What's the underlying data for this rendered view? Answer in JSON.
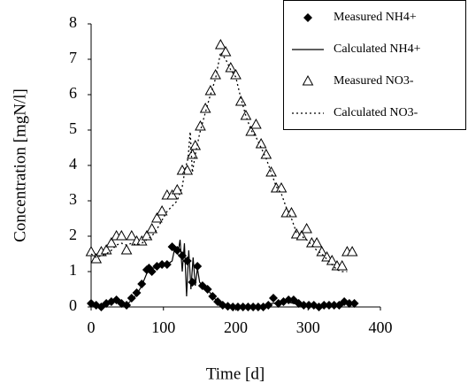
{
  "chart_data": {
    "type": "line",
    "x_label": "Time [d]",
    "y_label": "Concentration [mgN/l]",
    "xlim": [
      0,
      400
    ],
    "xticks": [
      0,
      100,
      200,
      300,
      400
    ],
    "ylim": [
      0,
      8
    ],
    "yticks": [
      0,
      1,
      2,
      3,
      4,
      5,
      6,
      7,
      8
    ],
    "legend": "upper right",
    "series": [
      {
        "name": "Measured NH4+",
        "color": "#000000",
        "marker": "diamond",
        "x": [
          0,
          7,
          14,
          21,
          28,
          35,
          42,
          49,
          56,
          63,
          70,
          77,
          80,
          84,
          91,
          98,
          105,
          112,
          119,
          126,
          133,
          140,
          147,
          154,
          161,
          168,
          175,
          182,
          189,
          196,
          203,
          210,
          217,
          224,
          231,
          238,
          245,
          252,
          259,
          266,
          273,
          280,
          287,
          294,
          301,
          308,
          315,
          322,
          329,
          336,
          343,
          350,
          357,
          364
        ],
        "values": [
          0.1,
          0.05,
          0.0,
          0.1,
          0.15,
          0.2,
          0.1,
          0.05,
          0.25,
          0.4,
          0.65,
          1.05,
          1.1,
          1.0,
          1.15,
          1.2,
          1.2,
          1.7,
          1.6,
          1.45,
          1.3,
          0.7,
          1.15,
          0.6,
          0.5,
          0.3,
          0.15,
          0.05,
          0.02,
          0,
          0,
          0,
          0,
          0,
          0,
          0,
          0.05,
          0.25,
          0.1,
          0.15,
          0.2,
          0.2,
          0.1,
          0.05,
          0.05,
          0.05,
          0.0,
          0.05,
          0.05,
          0.05,
          0.05,
          0.15,
          0.1,
          0.1
        ]
      },
      {
        "name": "Calculated NH4+",
        "color": "#000000",
        "dash": "solid",
        "x": [
          0,
          7,
          14,
          21,
          28,
          35,
          42,
          49,
          56,
          63,
          70,
          77,
          84,
          91,
          98,
          105,
          112,
          116,
          120,
          123,
          126,
          129,
          132,
          135,
          138,
          141,
          144,
          147,
          150,
          154,
          161,
          168,
          175,
          182,
          189,
          196,
          210,
          230,
          250,
          270,
          290,
          310,
          330,
          350,
          364
        ],
        "values": [
          0.1,
          0.05,
          0.05,
          0.1,
          0.15,
          0.15,
          0.1,
          0.05,
          0.2,
          0.35,
          0.6,
          0.95,
          1.1,
          1.1,
          1.2,
          1.2,
          1.3,
          1.7,
          1.5,
          1.9,
          1.0,
          1.8,
          0.3,
          1.6,
          0.5,
          1.4,
          0.6,
          1.1,
          0.7,
          0.6,
          0.5,
          0.3,
          0.15,
          0.05,
          0.02,
          0,
          0,
          0,
          0.1,
          0.15,
          0.05,
          0.05,
          0.05,
          0.1,
          0.1
        ]
      },
      {
        "name": "Measured NO3-",
        "color": "#000000",
        "marker": "triangle",
        "x": [
          0,
          7,
          14,
          21,
          28,
          35,
          42,
          49,
          56,
          63,
          70,
          77,
          84,
          91,
          98,
          105,
          112,
          119,
          126,
          133,
          140,
          144,
          151,
          158,
          165,
          172,
          179,
          186,
          193,
          200,
          207,
          214,
          221,
          228,
          235,
          242,
          249,
          256,
          263,
          270,
          277,
          284,
          291,
          298,
          305,
          312,
          319,
          326,
          333,
          340,
          347,
          354,
          361
        ],
        "values": [
          1.55,
          1.35,
          1.55,
          1.6,
          1.8,
          2.0,
          2.0,
          1.6,
          2.0,
          1.85,
          1.85,
          2.0,
          2.2,
          2.5,
          2.7,
          3.15,
          3.15,
          3.3,
          3.85,
          3.85,
          4.3,
          4.55,
          5.1,
          5.6,
          6.1,
          6.55,
          7.4,
          7.2,
          6.75,
          6.55,
          5.8,
          5.4,
          4.95,
          5.15,
          4.6,
          4.3,
          3.8,
          3.35,
          3.35,
          2.65,
          2.65,
          2.05,
          2.0,
          2.2,
          1.8,
          1.8,
          1.55,
          1.4,
          1.3,
          1.15,
          1.15,
          1.55,
          1.55
        ]
      },
      {
        "name": "Calculated NO3-",
        "color": "#000000",
        "dash": "dotted",
        "x": [
          0,
          7,
          14,
          21,
          28,
          35,
          42,
          49,
          56,
          63,
          70,
          77,
          84,
          91,
          98,
          105,
          112,
          119,
          126,
          130,
          134,
          137,
          140,
          144,
          150,
          158,
          165,
          172,
          179,
          186,
          193,
          200,
          207,
          214,
          221,
          228,
          235,
          242,
          249,
          256,
          263,
          270,
          277,
          284,
          291,
          298,
          305,
          312,
          319,
          326,
          333,
          340,
          347,
          354
        ],
        "values": [
          1.5,
          1.4,
          1.45,
          1.5,
          1.6,
          1.75,
          1.8,
          1.75,
          1.8,
          1.75,
          1.8,
          1.9,
          2.0,
          2.2,
          2.45,
          2.7,
          2.85,
          3.0,
          3.4,
          3.9,
          4.2,
          4.95,
          3.8,
          4.3,
          4.9,
          5.5,
          6.0,
          6.45,
          7.2,
          7.0,
          6.7,
          6.5,
          5.9,
          5.4,
          5.0,
          4.8,
          4.5,
          4.2,
          3.8,
          3.4,
          3.2,
          2.8,
          2.5,
          2.1,
          2.0,
          1.9,
          1.75,
          1.6,
          1.5,
          1.35,
          1.2,
          1.05,
          1.0,
          1.0
        ]
      }
    ]
  }
}
